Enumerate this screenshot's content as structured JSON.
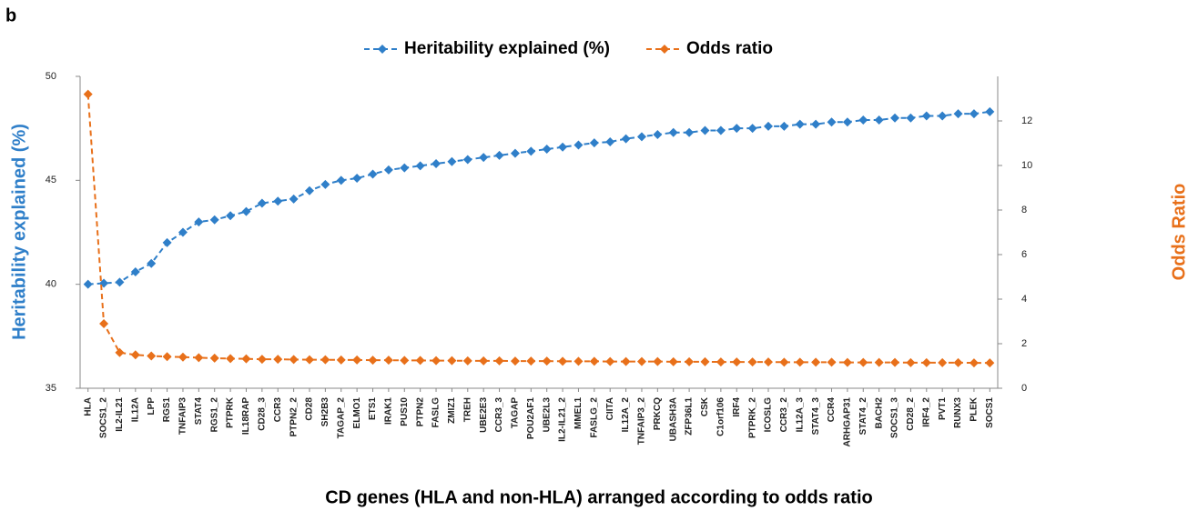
{
  "chart_data": {
    "type": "line",
    "panel_label": "b",
    "x_label": "CD genes (HLA and non-HLA) arranged according to odds ratio",
    "y_label": "Heritability explained (%)",
    "y2_label": "Odds Ratio",
    "legend": "top",
    "categories": [
      "HLA",
      "SOCS1_2",
      "IL2-IL21",
      "IL12A",
      "LPP",
      "RGS1",
      "TNFAIP3",
      "STAT4",
      "RGS1_2",
      "PTPRK",
      "IL18RAP",
      "CD28_3",
      "CCR3",
      "PTPN2_2",
      "CD28",
      "SH2B3",
      "TAGAP_2",
      "ELMO1",
      "ETS1",
      "IRAK1",
      "PUS10",
      "PTPN2",
      "FASLG",
      "ZMIZ1",
      "TREH",
      "UBE2E3",
      "CCR3_3",
      "TAGAP",
      "POU2AF1",
      "UBE2L3",
      "IL2-IL21_2",
      "MMEL1",
      "FASLG_2",
      "CIITA",
      "IL12A_2",
      "TNFAIP3_2",
      "PRKCQ",
      "UBASH3A",
      "ZFP36L1",
      "CSK",
      "C1orf106",
      "IRF4",
      "PTPRK_2",
      "ICOSLG",
      "CCR3_2",
      "IL12A_3",
      "STAT4_3",
      "CCR4",
      "ARHGAP31",
      "STAT4_2",
      "BACH2",
      "SOCS1_3",
      "CD28_2",
      "IRF4_2",
      "PVT1",
      "RUNX3",
      "PLEK",
      "SOCS1"
    ],
    "series": [
      {
        "name": "Heritability explained (%)",
        "color": "#2f7fc9",
        "axis": "y",
        "values": [
          40.0,
          40.05,
          40.1,
          40.6,
          41.0,
          42.0,
          42.5,
          43.0,
          43.1,
          43.3,
          43.5,
          43.9,
          44.0,
          44.1,
          44.5,
          44.8,
          45.0,
          45.1,
          45.3,
          45.5,
          45.6,
          45.7,
          45.8,
          45.9,
          46.0,
          46.1,
          46.2,
          46.3,
          46.4,
          46.5,
          46.6,
          46.7,
          46.8,
          46.85,
          47.0,
          47.1,
          47.2,
          47.3,
          47.3,
          47.4,
          47.4,
          47.5,
          47.5,
          47.6,
          47.6,
          47.7,
          47.7,
          47.8,
          47.8,
          47.9,
          47.9,
          48.0,
          48.0,
          48.1,
          48.1,
          48.2,
          48.2,
          48.3
        ]
      },
      {
        "name": "Odds ratio",
        "color": "#e8701a",
        "axis": "y2",
        "values": [
          13.2,
          2.9,
          1.6,
          1.5,
          1.45,
          1.42,
          1.4,
          1.37,
          1.35,
          1.33,
          1.32,
          1.3,
          1.3,
          1.29,
          1.28,
          1.28,
          1.27,
          1.27,
          1.26,
          1.26,
          1.25,
          1.25,
          1.24,
          1.24,
          1.23,
          1.23,
          1.23,
          1.22,
          1.22,
          1.22,
          1.21,
          1.21,
          1.21,
          1.2,
          1.2,
          1.2,
          1.2,
          1.19,
          1.19,
          1.19,
          1.18,
          1.18,
          1.18,
          1.18,
          1.17,
          1.17,
          1.17,
          1.17,
          1.16,
          1.16,
          1.16,
          1.16,
          1.15,
          1.15,
          1.15,
          1.15,
          1.14,
          1.14
        ]
      }
    ],
    "ylim": [
      35,
      50
    ],
    "yticks": [
      35,
      40,
      45,
      50
    ],
    "y2lim": [
      0,
      14
    ],
    "y2ticks": [
      0,
      2,
      4,
      6,
      8,
      10,
      12
    ]
  }
}
